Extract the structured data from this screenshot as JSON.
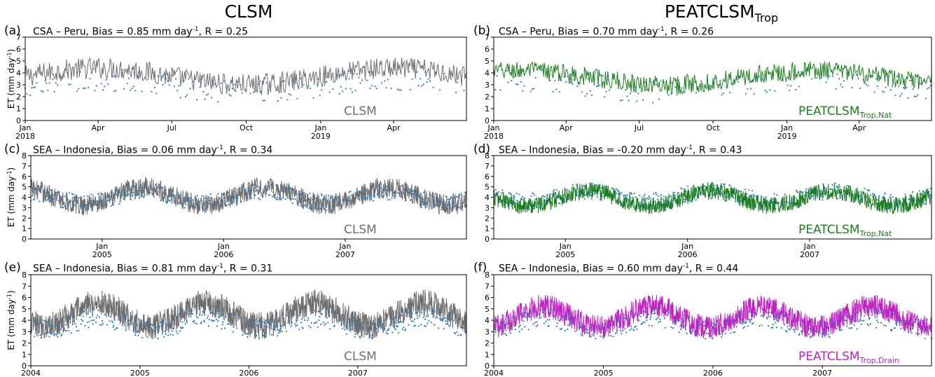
{
  "columns": {
    "left": {
      "title": "CLSM"
    },
    "right": {
      "title": "PEATCLSM",
      "title_sub": "Trop"
    }
  },
  "colors": {
    "clsm": "#6e6e6e",
    "nat": "#1a7f1a",
    "drain": "#c41fc4",
    "obs": "#2b7bbf"
  },
  "chart_data": [
    {
      "type": "line+scatter",
      "panel": "(a)",
      "title_prefix": "CSA – Peru, Bias = 0.85 mm day",
      "title_sup": "-1",
      "title_suffix": ", R = 0.25",
      "ylabel": "ET (mm day-1)",
      "ylim": [
        0,
        7
      ],
      "yticks": [
        "0",
        "1",
        "2",
        "3",
        "4",
        "5",
        "6",
        "7"
      ],
      "xlim": [
        "2018-01-01",
        "2019-06-30"
      ],
      "xticks": [
        {
          "date": "2018-01-01",
          "label": "Jan",
          "label2": "2018"
        },
        {
          "date": "2018-04-01",
          "label": "Apr",
          "label2": ""
        },
        {
          "date": "2018-07-01",
          "label": "Jul",
          "label2": ""
        },
        {
          "date": "2018-10-01",
          "label": "Oct",
          "label2": ""
        },
        {
          "date": "2019-01-01",
          "label": "Jan",
          "label2": "2019"
        },
        {
          "date": "2019-04-01",
          "label": "Apr",
          "label2": ""
        }
      ],
      "model": {
        "name": "CLSM",
        "name_sub": "",
        "color_key": "clsm",
        "mean": 3.7,
        "amplitude": 0.7,
        "noise": 0.9
      },
      "obs": {
        "mean": 2.9,
        "noise": 0.95
      }
    },
    {
      "type": "line+scatter",
      "panel": "(b)",
      "title_prefix": "CSA – Peru, Bias = 0.70 mm day",
      "title_sup": "-1",
      "title_suffix": ", R = 0.26",
      "ylabel": "",
      "ylim": [
        0,
        7
      ],
      "yticks": [
        "0",
        "1",
        "2",
        "3",
        "4",
        "5",
        "6",
        "7"
      ],
      "xlim": [
        "2018-01-01",
        "2019-06-30"
      ],
      "xticks": [
        {
          "date": "2018-01-01",
          "label": "Jan",
          "label2": "2018"
        },
        {
          "date": "2018-04-01",
          "label": "Apr",
          "label2": ""
        },
        {
          "date": "2018-07-01",
          "label": "Jul",
          "label2": ""
        },
        {
          "date": "2018-10-01",
          "label": "Oct",
          "label2": ""
        },
        {
          "date": "2019-01-01",
          "label": "Jan",
          "label2": "2019"
        },
        {
          "date": "2019-04-01",
          "label": "Apr",
          "label2": ""
        }
      ],
      "model": {
        "name": "PEATCLSM",
        "name_sub": "Trop,Nat",
        "color_key": "nat",
        "mean": 3.6,
        "amplitude": 0.6,
        "noise": 0.8
      },
      "obs": {
        "mean": 2.9,
        "noise": 0.95
      }
    },
    {
      "type": "line+scatter",
      "panel": "(c)",
      "title_prefix": "SEA – Indonesia, Bias = 0.06 mm day",
      "title_sup": "-1",
      "title_suffix": ", R = 0.34",
      "ylabel": "ET (mm day-1)",
      "ylim": [
        0,
        8
      ],
      "yticks": [
        "0",
        "1",
        "2",
        "3",
        "4",
        "5",
        "6",
        "7",
        "8"
      ],
      "xlim": [
        "2004-06-01",
        "2007-12-31"
      ],
      "xticks": [
        {
          "date": "2005-01-01",
          "label": "Jan",
          "label2": "2005"
        },
        {
          "date": "2006-01-01",
          "label": "Jan",
          "label2": "2006"
        },
        {
          "date": "2007-01-01",
          "label": "Jan",
          "label2": "2007"
        }
      ],
      "model": {
        "name": "CLSM",
        "name_sub": "",
        "color_key": "clsm",
        "mean": 4.1,
        "amplitude": 0.8,
        "noise": 1.0
      },
      "obs": {
        "mean": 4.0,
        "noise": 0.8
      }
    },
    {
      "type": "line+scatter",
      "panel": "(d)",
      "title_prefix": "SEA – Indonesia, Bias = -0.20 mm day",
      "title_sup": "-1",
      "title_suffix": ", R = 0.43",
      "ylabel": "",
      "ylim": [
        0,
        8
      ],
      "yticks": [
        "0",
        "1",
        "2",
        "3",
        "4",
        "5",
        "6",
        "7",
        "8"
      ],
      "xlim": [
        "2004-06-01",
        "2007-12-31"
      ],
      "xticks": [
        {
          "date": "2005-01-01",
          "label": "Jan",
          "label2": "2005"
        },
        {
          "date": "2006-01-01",
          "label": "Jan",
          "label2": "2006"
        },
        {
          "date": "2007-01-01",
          "label": "Jan",
          "label2": "2007"
        }
      ],
      "model": {
        "name": "PEATCLSM",
        "name_sub": "Trop,Nat",
        "color_key": "nat",
        "mean": 3.9,
        "amplitude": 0.7,
        "noise": 0.85
      },
      "obs": {
        "mean": 4.1,
        "noise": 0.8
      }
    },
    {
      "type": "line+scatter",
      "panel": "(e)",
      "title_prefix": "SEA – Indonesia, Bias = 0.81 mm day",
      "title_sup": "-1",
      "title_suffix": ", R = 0.31",
      "ylabel": "ET (mm day-1)",
      "ylim": [
        0,
        8
      ],
      "yticks": [
        "0",
        "1",
        "2",
        "3",
        "4",
        "5",
        "6",
        "7",
        "8"
      ],
      "xlim": [
        "2004-01-01",
        "2007-12-31"
      ],
      "xticks": [
        {
          "date": "2004-01-01",
          "label": "2004",
          "label2": ""
        },
        {
          "date": "2005-01-01",
          "label": "2005",
          "label2": ""
        },
        {
          "date": "2006-01-01",
          "label": "2006",
          "label2": ""
        },
        {
          "date": "2007-01-01",
          "label": "2007",
          "label2": ""
        }
      ],
      "model": {
        "name": "CLSM",
        "name_sub": "",
        "color_key": "clsm",
        "mean": 4.5,
        "amplitude": 1.0,
        "noise": 1.2
      },
      "obs": {
        "mean": 3.7,
        "noise": 0.85
      }
    },
    {
      "type": "line+scatter",
      "panel": "(f)",
      "title_prefix": "SEA – Indonesia, Bias = 0.60 mm day",
      "title_sup": "-1",
      "title_suffix": ", R = 0.44",
      "ylabel": "",
      "ylim": [
        0,
        8
      ],
      "yticks": [
        "0",
        "1",
        "2",
        "3",
        "4",
        "5",
        "6",
        "7",
        "8"
      ],
      "xlim": [
        "2004-01-01",
        "2007-12-31"
      ],
      "xticks": [
        {
          "date": "2004-01-01",
          "label": "2004",
          "label2": ""
        },
        {
          "date": "2005-01-01",
          "label": "2005",
          "label2": ""
        },
        {
          "date": "2006-01-01",
          "label": "2006",
          "label2": ""
        },
        {
          "date": "2007-01-01",
          "label": "2007",
          "label2": ""
        }
      ],
      "model": {
        "name": "PEATCLSM",
        "name_sub": "Trop,Drain",
        "color_key": "drain",
        "mean": 4.3,
        "amplitude": 0.9,
        "noise": 1.05
      },
      "obs": {
        "mean": 3.7,
        "noise": 0.85
      }
    }
  ]
}
